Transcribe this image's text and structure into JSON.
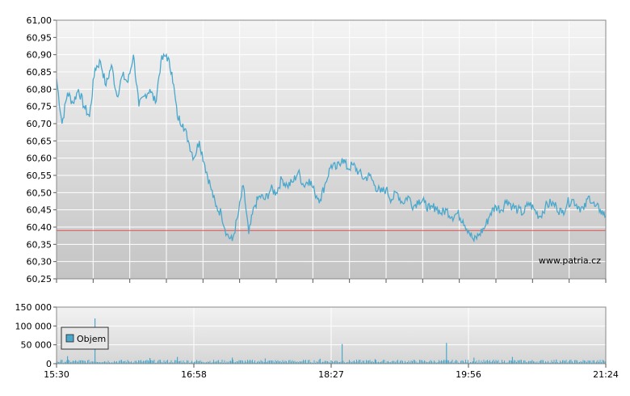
{
  "chart_data": [
    {
      "type": "line",
      "y_ticks": [
        "61,00",
        "60,95",
        "60,90",
        "60,85",
        "60,80",
        "60,75",
        "60,70",
        "60,65",
        "60,60",
        "60,55",
        "60,50",
        "60,45",
        "60,40",
        "60,35",
        "60,30",
        "60,25"
      ],
      "ylim": [
        60.25,
        61.0
      ],
      "reference_line": 60.39,
      "watermark": "www.patria.cz",
      "colors": {
        "line": "#4aa8cc",
        "reference": "#e05050"
      },
      "series": [
        {
          "x": [
            0,
            1,
            2,
            3,
            4,
            5,
            6,
            7,
            8,
            9,
            10,
            11,
            12,
            13,
            14,
            15,
            16,
            17,
            18,
            19,
            20,
            21,
            22,
            23,
            24,
            25,
            26,
            27,
            28,
            29,
            30,
            31,
            32,
            33,
            34,
            35,
            36,
            37,
            38,
            39,
            40,
            41,
            42,
            43,
            44,
            45,
            46,
            47,
            48,
            49,
            50,
            51,
            52,
            53,
            54,
            55,
            56,
            57,
            58,
            59,
            60,
            61,
            62,
            63,
            64,
            65,
            66,
            67,
            68,
            69,
            70,
            71,
            72,
            73,
            74,
            75,
            76,
            77,
            78,
            79,
            80,
            81,
            82,
            83,
            84,
            85,
            86,
            87,
            88,
            89,
            90,
            91,
            92,
            93,
            94,
            95,
            96,
            97,
            98,
            99,
            100
          ],
          "values": [
            60.83,
            60.7,
            60.79,
            60.76,
            60.8,
            60.75,
            60.72,
            60.86,
            60.88,
            60.81,
            60.87,
            60.78,
            60.84,
            60.82,
            60.9,
            60.75,
            60.78,
            60.8,
            60.76,
            60.88,
            60.9,
            60.85,
            60.72,
            60.7,
            60.65,
            60.6,
            60.65,
            60.58,
            60.52,
            60.46,
            60.44,
            60.38,
            60.36,
            60.43,
            60.52,
            60.38,
            60.46,
            60.49,
            60.48,
            60.51,
            60.5,
            60.54,
            60.52,
            60.53,
            60.56,
            60.52,
            60.54,
            60.5,
            60.48,
            60.53,
            60.58,
            60.57,
            60.6,
            60.57,
            60.58,
            60.56,
            60.54,
            60.55,
            60.52,
            60.5,
            60.51,
            60.48,
            60.5,
            60.47,
            60.49,
            60.46,
            60.48,
            60.47,
            60.45,
            60.46,
            60.44,
            60.45,
            60.43,
            60.44,
            60.42,
            60.39,
            60.36,
            60.38,
            60.4,
            60.44,
            60.46,
            60.45,
            60.48,
            60.46,
            60.45,
            60.44,
            60.47,
            60.45,
            60.43,
            60.46,
            60.47,
            60.46,
            60.44,
            60.47,
            60.48,
            60.46,
            60.45,
            60.49,
            60.46,
            60.45,
            60.43
          ]
        }
      ]
    },
    {
      "type": "bar",
      "y_ticks": [
        "150 000",
        "100 000",
        "50 000",
        "0"
      ],
      "ylim": [
        0,
        150000
      ],
      "x_ticks": [
        "15:30",
        "16:58",
        "18:27",
        "19:56",
        "21:24"
      ],
      "legend": "Objem",
      "colors": {
        "bar": "#4aa8cc"
      },
      "spikes": [
        {
          "x": 2,
          "value": 20000
        },
        {
          "x": 7,
          "value": 120000
        },
        {
          "x": 17,
          "value": 15000
        },
        {
          "x": 22,
          "value": 18000
        },
        {
          "x": 32,
          "value": 16000
        },
        {
          "x": 38,
          "value": 14000
        },
        {
          "x": 48,
          "value": 13000
        },
        {
          "x": 52,
          "value": 52000
        },
        {
          "x": 58,
          "value": 12000
        },
        {
          "x": 71,
          "value": 55000
        },
        {
          "x": 76,
          "value": 16000
        },
        {
          "x": 83,
          "value": 18000
        },
        {
          "x": 91,
          "value": 11000
        }
      ]
    }
  ]
}
